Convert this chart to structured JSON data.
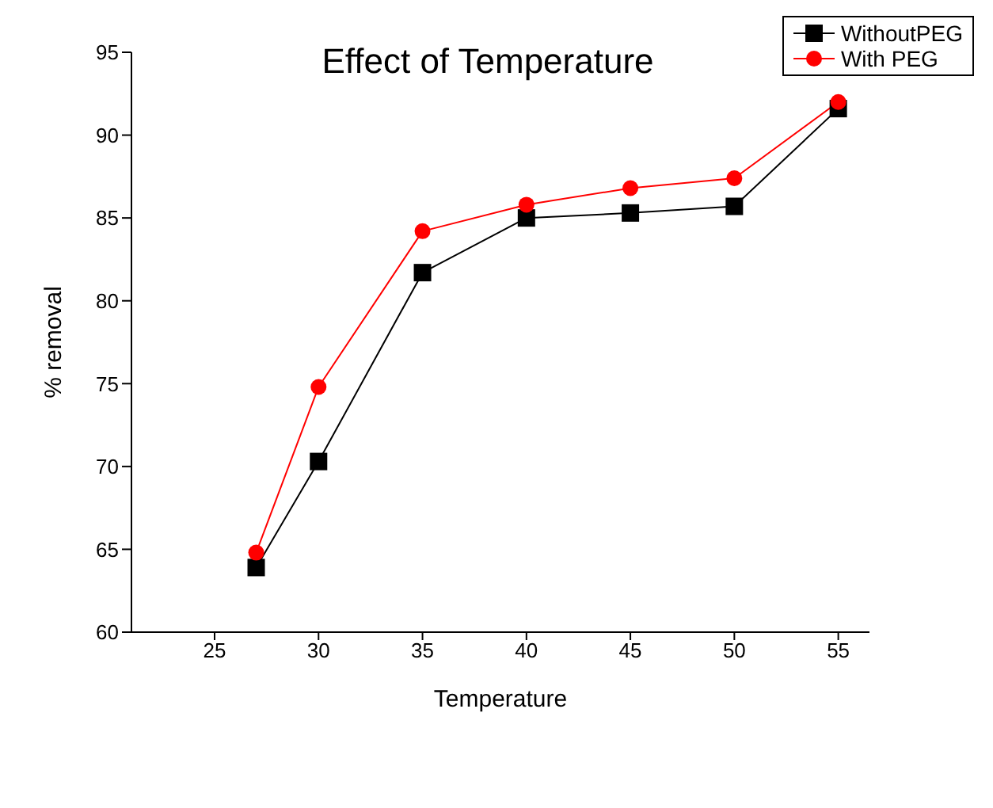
{
  "chart_data": {
    "type": "line",
    "title": "Effect of Temperature",
    "xlabel": "Temperature",
    "ylabel": "% removal",
    "x": [
      27,
      30,
      35,
      40,
      45,
      50,
      55
    ],
    "series": [
      {
        "name": "WithoutPEG",
        "color": "#000000",
        "marker": "square",
        "values": [
          63.9,
          70.3,
          81.7,
          85.0,
          85.3,
          85.7,
          91.6
        ]
      },
      {
        "name": "With PEG",
        "color": "#ff0000",
        "marker": "circle",
        "values": [
          64.8,
          74.8,
          84.2,
          85.8,
          86.8,
          87.4,
          92.0
        ]
      }
    ],
    "xlim": [
      21,
      56.5
    ],
    "xticks": [
      25,
      30,
      35,
      40,
      45,
      50,
      55
    ],
    "ylim": [
      60,
      95
    ],
    "yticks": [
      60,
      65,
      70,
      75,
      80,
      85,
      90,
      95
    ],
    "grid": false,
    "legend": "top right",
    "line_style": "solid"
  }
}
